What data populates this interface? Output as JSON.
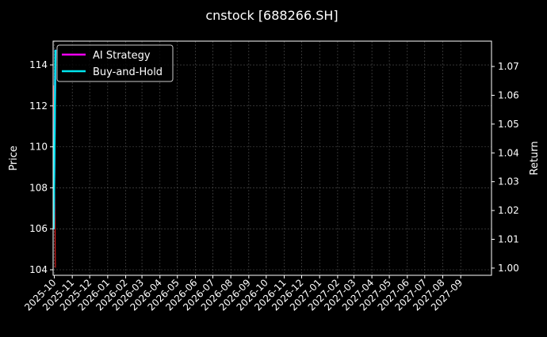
{
  "chart_data": {
    "type": "line",
    "title": "cnstock [688266.SH]",
    "ylabel": "Price",
    "ylabel_right": "Return",
    "ylim": [
      103.73,
      115.16
    ],
    "ylim_right": [
      0.9975,
      1.0788
    ],
    "xlim": [
      "2025-09-29",
      "2027-10-24"
    ],
    "yticks": [
      104,
      106,
      108,
      110,
      112,
      114
    ],
    "yticks_right": [
      "1.00",
      "1.01",
      "1.02",
      "1.03",
      "1.04",
      "1.05",
      "1.06",
      "1.07"
    ],
    "xticks": [
      "2025-10",
      "2025-11",
      "2025-12",
      "2026-01",
      "2026-02",
      "2026-03",
      "2026-04",
      "2026-05",
      "2026-06",
      "2026-07",
      "2026-08",
      "2026-09",
      "2026-10",
      "2026-11",
      "2026-12",
      "2027-01",
      "2027-02",
      "2027-03",
      "2027-04",
      "2027-05",
      "2027-06",
      "2027-07",
      "2027-08",
      "2027-09"
    ],
    "grid": true,
    "legend_placement": "top-left",
    "price": {
      "x": [
        "2025-09-30",
        "2025-10-03"
      ],
      "values": [
        113.0,
        104.1
      ],
      "color": "#ff2020",
      "axis": "left"
    },
    "series": [
      {
        "name": "AI Strategy",
        "x": [
          "2025-09-30",
          "2025-10-03"
        ],
        "values": [
          1.0135,
          1.0758
        ],
        "color": "#ff00ff",
        "axis": "right"
      },
      {
        "name": "Buy-and-Hold",
        "x": [
          "2025-09-30",
          "2025-10-03"
        ],
        "values": [
          1.0135,
          1.0758
        ],
        "color": "#00e5ee",
        "axis": "right"
      }
    ]
  }
}
